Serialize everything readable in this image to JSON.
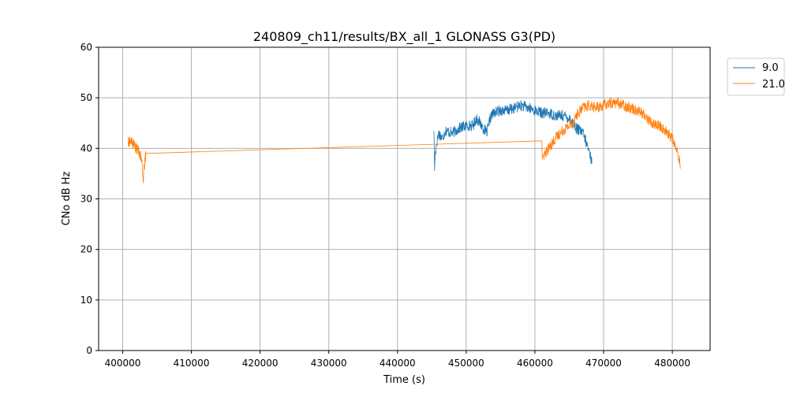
{
  "chart_data": {
    "type": "line",
    "title": "240809_ch11/results/BX_all_1 GLONASS G3(PD)",
    "xlabel": "Time (s)",
    "ylabel": "CNo dB Hz",
    "xlim": [
      396500,
      485500
    ],
    "ylim": [
      0,
      60
    ],
    "xticks": [
      400000,
      410000,
      420000,
      430000,
      440000,
      450000,
      460000,
      470000,
      480000
    ],
    "xtick_labels": [
      "400000",
      "410000",
      "420000",
      "430000",
      "440000",
      "450000",
      "460000",
      "470000",
      "480000"
    ],
    "yticks": [
      0,
      10,
      20,
      30,
      40,
      50,
      60
    ],
    "ytick_labels": [
      "0",
      "10",
      "20",
      "30",
      "40",
      "50",
      "60"
    ],
    "grid": true,
    "legend_position": "outside top-right",
    "series": [
      {
        "name": "9.0",
        "color": "#1f77b4",
        "points": [
          [
            445300,
            44
          ],
          [
            445400,
            36
          ],
          [
            445500,
            39
          ],
          [
            445700,
            41
          ],
          [
            446000,
            43
          ],
          [
            446500,
            42
          ],
          [
            447000,
            43.5
          ],
          [
            448000,
            43
          ],
          [
            449000,
            44
          ],
          [
            450000,
            44.5
          ],
          [
            451000,
            44.5
          ],
          [
            451500,
            46
          ],
          [
            452000,
            45
          ],
          [
            452500,
            44
          ],
          [
            453000,
            43
          ],
          [
            453500,
            46
          ],
          [
            454000,
            47
          ],
          [
            455000,
            47.5
          ],
          [
            456000,
            47.5
          ],
          [
            457000,
            48
          ],
          [
            458000,
            48.5
          ],
          [
            459000,
            48
          ],
          [
            460000,
            47.5
          ],
          [
            461000,
            47
          ],
          [
            462000,
            47
          ],
          [
            463000,
            46.5
          ],
          [
            464000,
            46.5
          ],
          [
            465000,
            46
          ],
          [
            465500,
            45
          ],
          [
            466000,
            44
          ],
          [
            466500,
            43.5
          ],
          [
            467000,
            43
          ],
          [
            467500,
            41
          ],
          [
            468000,
            39
          ],
          [
            468300,
            37
          ]
        ]
      },
      {
        "name": "21.0",
        "color": "#ff7f0e",
        "points": [
          [
            400800,
            41
          ],
          [
            401000,
            41.5
          ],
          [
            401500,
            41
          ],
          [
            402000,
            40
          ],
          [
            402500,
            39
          ],
          [
            402800,
            37
          ],
          [
            403000,
            34
          ],
          [
            403100,
            36
          ],
          [
            403300,
            38
          ],
          [
            403400,
            39
          ],
          [
            461000,
            41.5
          ],
          [
            461100,
            37.5
          ],
          [
            461500,
            39
          ],
          [
            462000,
            40
          ],
          [
            463000,
            42
          ],
          [
            464000,
            43.5
          ],
          [
            465000,
            44.5
          ],
          [
            465500,
            45
          ],
          [
            466000,
            46.5
          ],
          [
            467000,
            48
          ],
          [
            468000,
            48.5
          ],
          [
            469000,
            48
          ],
          [
            470000,
            48.5
          ],
          [
            471000,
            49
          ],
          [
            472000,
            49
          ],
          [
            473000,
            48.5
          ],
          [
            474000,
            48
          ],
          [
            475000,
            47.5
          ],
          [
            476000,
            46.5
          ],
          [
            477000,
            45
          ],
          [
            478000,
            44.5
          ],
          [
            479000,
            43.5
          ],
          [
            480000,
            42
          ],
          [
            480500,
            40
          ],
          [
            481000,
            38
          ],
          [
            481200,
            36
          ]
        ]
      }
    ]
  }
}
